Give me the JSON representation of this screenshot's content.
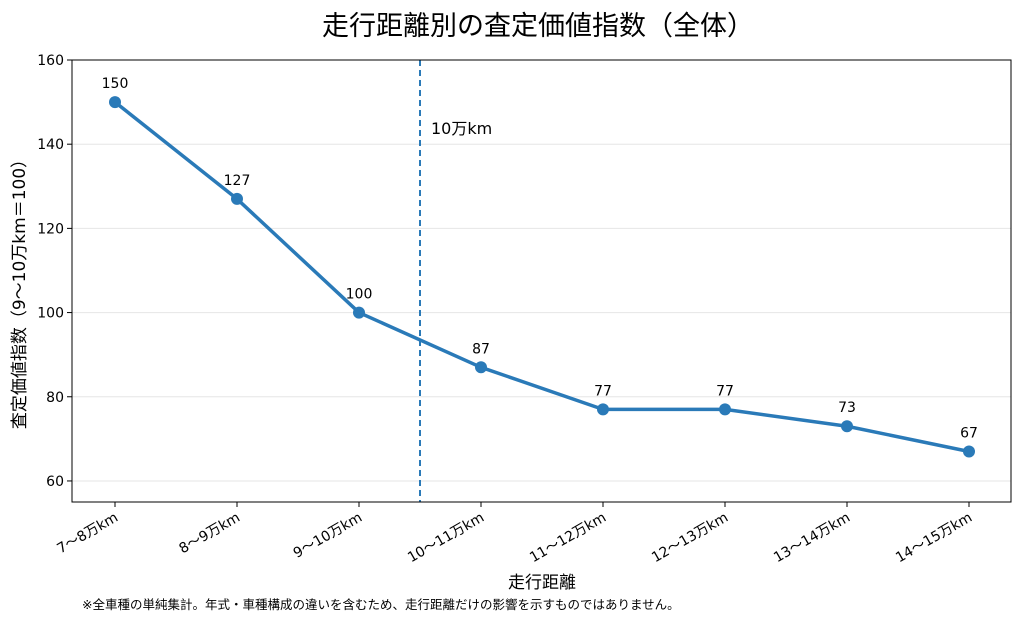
{
  "chart_data": {
    "type": "line",
    "title": "走行距離別の査定価値指数（全体）",
    "xlabel": "走行距離",
    "ylabel": "査定価値指数（9〜10万km＝100）",
    "categories": [
      "7〜8万km",
      "8〜9万km",
      "9〜10万km",
      "10〜11万km",
      "11〜12万km",
      "12〜13万km",
      "13〜14万km",
      "14〜15万km"
    ],
    "series": [
      {
        "values": [
          150,
          127,
          100,
          87,
          77,
          77,
          73,
          67
        ]
      }
    ],
    "data_labels": [
      "150",
      "127",
      "100",
      "87",
      "77",
      "77",
      "73",
      "67"
    ],
    "ylim": [
      55,
      160
    ],
    "yticks": [
      60,
      80,
      100,
      120,
      140,
      160
    ],
    "grid": "y",
    "annotation": {
      "text": "10万km",
      "x_position": 2.5,
      "style": "dashed vertical line"
    },
    "line_color": "#2a7ab8",
    "footnote": "※全車種の単純集計。年式・車種構成の違いを含むため、走行距離だけの影響を示すものではありません。"
  }
}
